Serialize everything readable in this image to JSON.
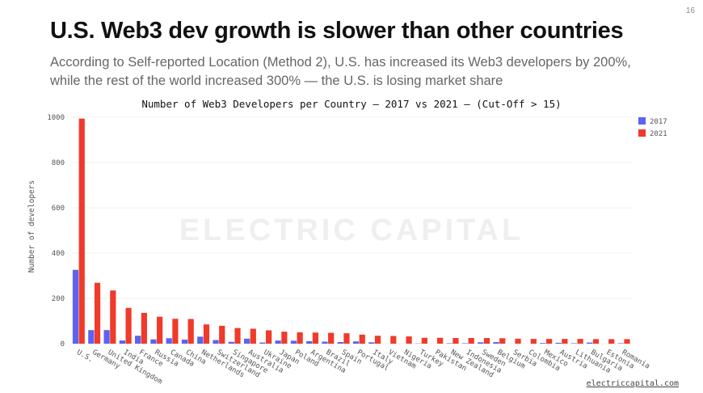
{
  "page_number": "16",
  "title": "U.S. Web3 dev growth is slower than other countries",
  "subtitle_line1": "According to Self-reported Location (Method 2), U.S. has increased its Web3 developers by 200%,",
  "subtitle_line2": "while the rest of the world increased 300% — the U.S. is losing market share",
  "footer_link": "electriccapital.com",
  "watermark": "ELECTRIC CAPITAL",
  "colors": {
    "s2017": "#5b63f0",
    "s2021": "#f03a2a"
  },
  "chart_data": {
    "type": "bar",
    "title": "Number of Web3 Developers per Country — 2017 vs 2021 — (Cut-Off > 15)",
    "xlabel": "",
    "ylabel": "Number of developers",
    "ylim": [
      0,
      1000
    ],
    "yticks": [
      0,
      200,
      400,
      600,
      800,
      1000
    ],
    "legend_position": "top-right",
    "grid": true,
    "categories": [
      "U.S.",
      "Germany",
      "United Kingdom",
      "India",
      "France",
      "Russia",
      "Canada",
      "China",
      "Netherlands",
      "Switzerland",
      "Singapore",
      "Australia",
      "Ukraine",
      "Japan",
      "Poland",
      "Argentina",
      "Brazil",
      "Spain",
      "Portugal",
      "Italy",
      "Vietnam",
      "Nigeria",
      "Turkey",
      "Pakistan",
      "New Zealand",
      "Indonesia",
      "Sweden",
      "Belgium",
      "Serbia",
      "Colombia",
      "Mexico",
      "Austria",
      "Lithuania",
      "Bulgaria",
      "Estonia",
      "Romania"
    ],
    "series": [
      {
        "name": "2017",
        "values": [
          326,
          60,
          60,
          14,
          35,
          19,
          24,
          18,
          31,
          16,
          8,
          22,
          5,
          14,
          13,
          11,
          9,
          7,
          10,
          6,
          0,
          0,
          1,
          0,
          2,
          2,
          6,
          7,
          0,
          0,
          3,
          4,
          2,
          5,
          0,
          2
        ]
      },
      {
        "name": "2021",
        "values": [
          994,
          269,
          235,
          158,
          136,
          119,
          110,
          109,
          85,
          79,
          69,
          66,
          59,
          53,
          50,
          49,
          48,
          46,
          40,
          35,
          34,
          32,
          26,
          26,
          25,
          25,
          25,
          24,
          22,
          21,
          21,
          21,
          21,
          20,
          20,
          20
        ]
      }
    ]
  }
}
